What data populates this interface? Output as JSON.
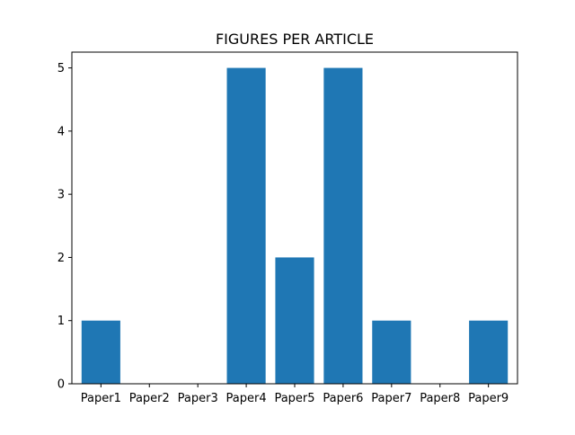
{
  "chart_data": {
    "type": "bar",
    "title": "FIGURES PER ARTICLE",
    "xlabel": "",
    "ylabel": "",
    "categories": [
      "Paper1",
      "Paper2",
      "Paper3",
      "Paper4",
      "Paper5",
      "Paper6",
      "Paper7",
      "Paper8",
      "Paper9"
    ],
    "values": [
      1,
      0,
      0,
      5,
      2,
      5,
      1,
      0,
      1
    ],
    "ylim": [
      0,
      5.25
    ],
    "yticks": [
      0,
      1,
      2,
      3,
      4,
      5
    ],
    "grid": false,
    "bar_color": "#1f77b4"
  }
}
